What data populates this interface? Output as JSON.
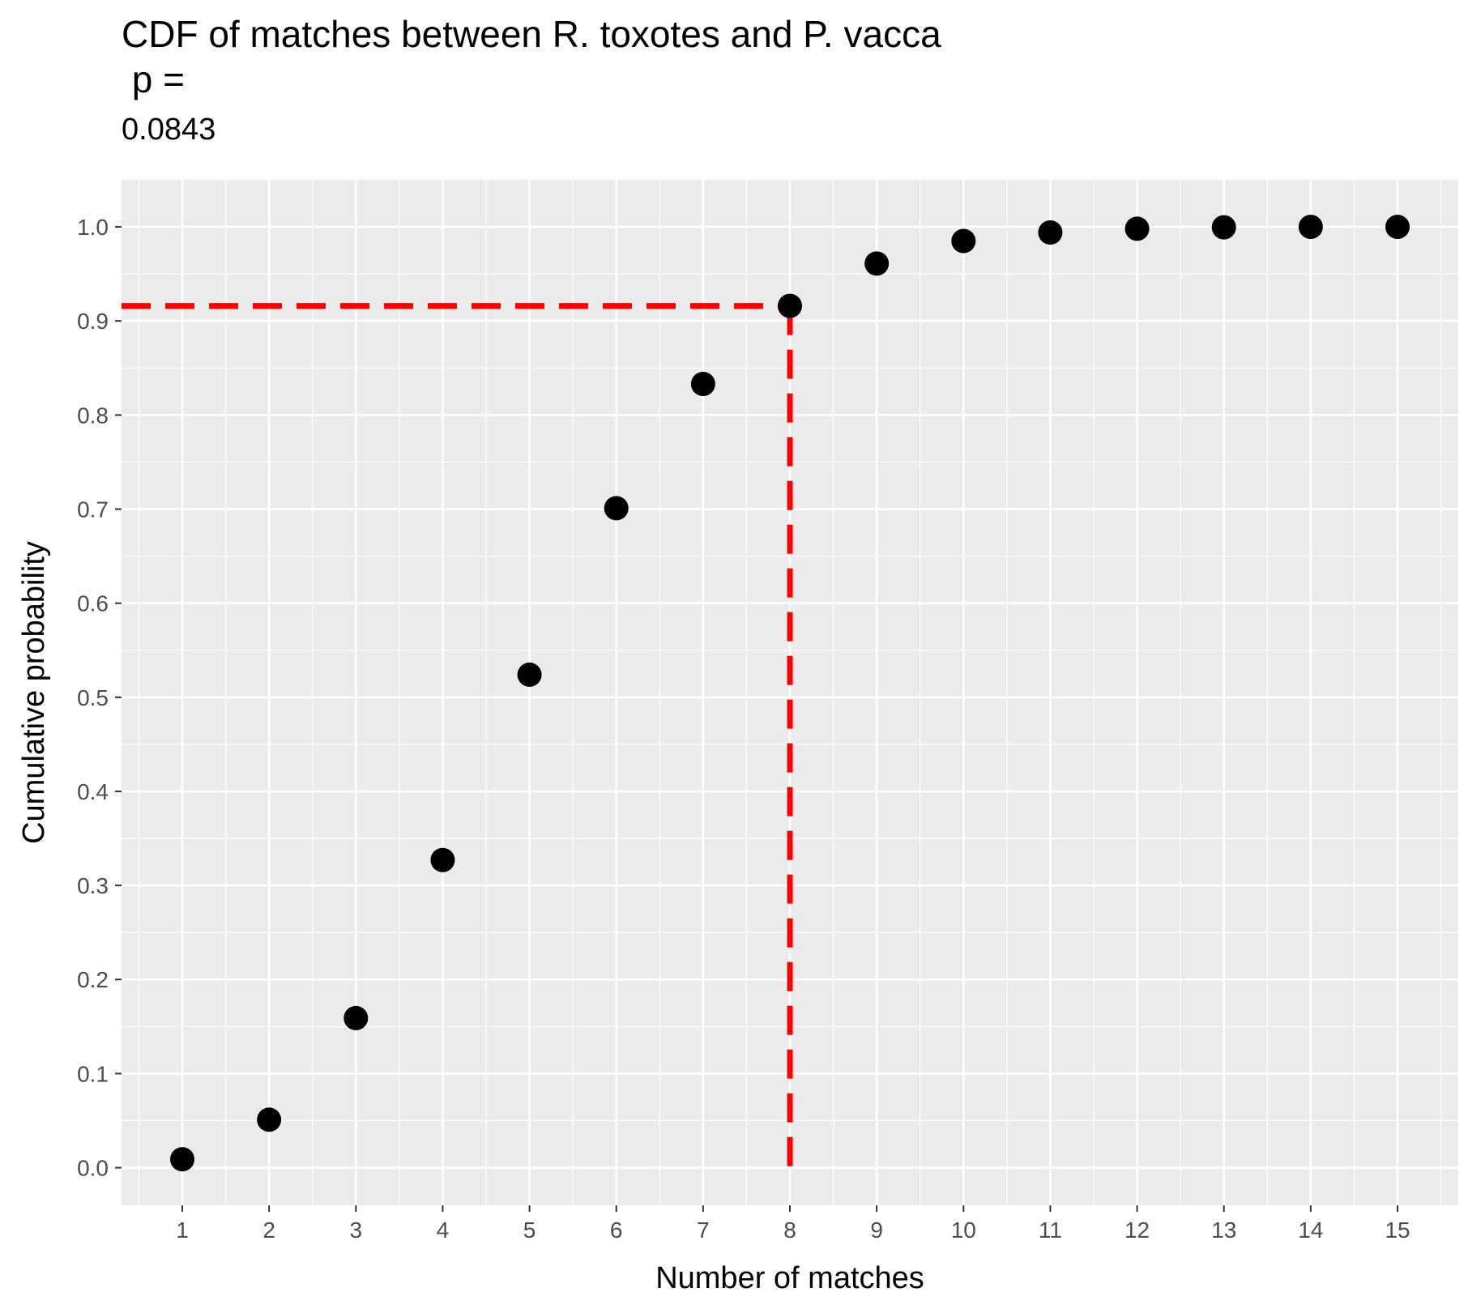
{
  "chart_data": {
    "type": "scatter",
    "title": "CDF of matches between R. toxotes and P. vacca",
    "title_line2": " p = ",
    "subtitle": "0.0843",
    "xlabel": "Number of matches",
    "ylabel": "Cumulative probability",
    "x": [
      1,
      2,
      3,
      4,
      5,
      6,
      7,
      8,
      9,
      10,
      11,
      12,
      13,
      14,
      15
    ],
    "y": [
      0.009,
      0.051,
      0.159,
      0.327,
      0.524,
      0.701,
      0.833,
      0.916,
      0.961,
      0.985,
      0.994,
      0.998,
      0.9995,
      1.0,
      1.0
    ],
    "xlim": [
      0.3,
      15.7
    ],
    "ylim": [
      -0.04,
      1.05
    ],
    "x_ticks": [
      "1",
      "2",
      "3",
      "4",
      "5",
      "6",
      "7",
      "8",
      "9",
      "10",
      "11",
      "12",
      "13",
      "14",
      "15"
    ],
    "y_ticks": [
      "0.0",
      "0.1",
      "0.2",
      "0.3",
      "0.4",
      "0.5",
      "0.6",
      "0.7",
      "0.8",
      "0.9",
      "1.0"
    ],
    "grid": true,
    "point_color": "#000000",
    "panel_background": "#ebebeb",
    "grid_color": "#ffffff",
    "reference_lines": {
      "color": "#ff0000",
      "style": "dashed",
      "x": 8,
      "y": 0.916
    }
  }
}
